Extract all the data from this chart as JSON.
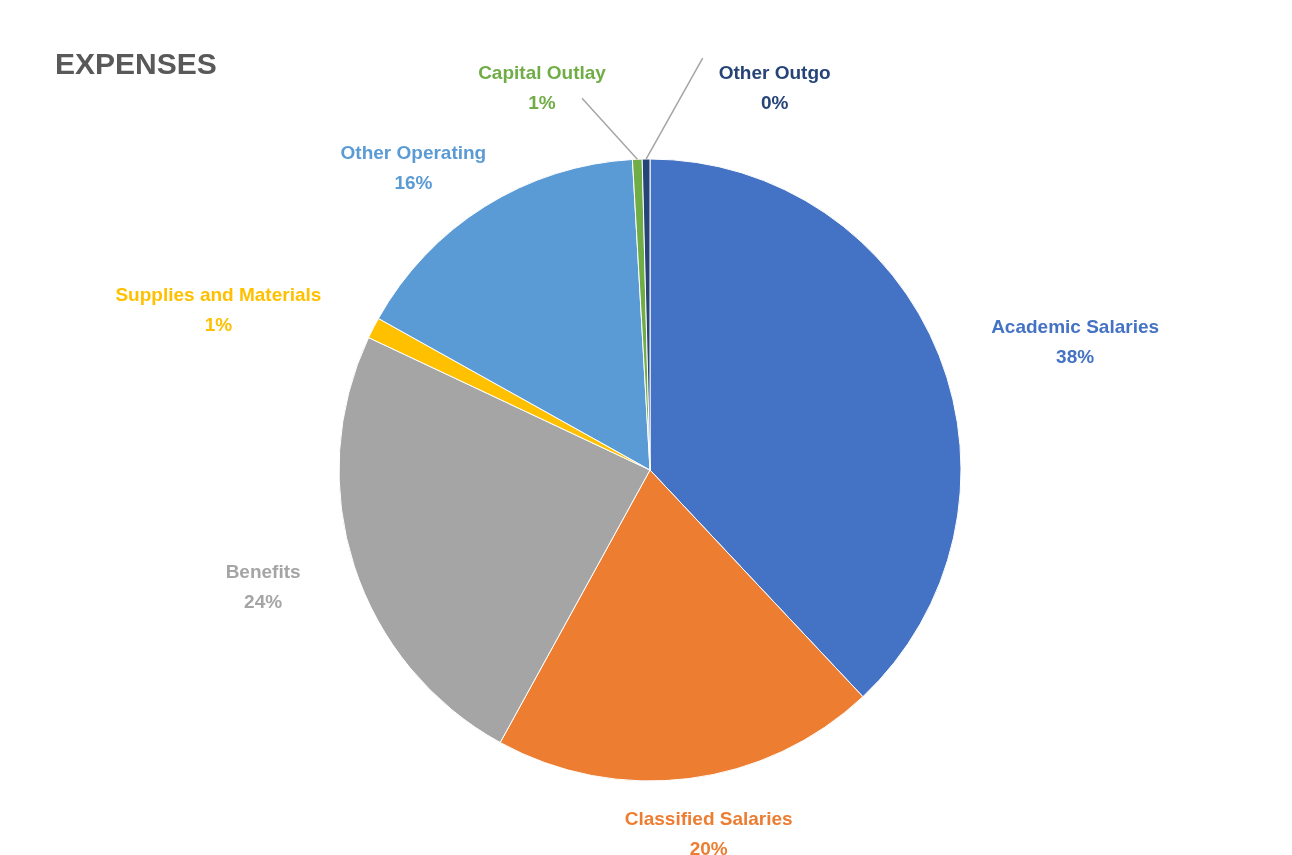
{
  "chart_data": {
    "type": "pie",
    "title": "EXPENSES",
    "categories": [
      "Academic Salaries",
      "Classified Salaries",
      "Benefits",
      "Supplies and Materials",
      "Other Operating",
      "Capital Outlay",
      "Other Outgo"
    ],
    "values": [
      38,
      20,
      24,
      1.1,
      16,
      0.5,
      0.4
    ],
    "value_labels": [
      "38%",
      "20%",
      "24%",
      "1%",
      "16%",
      "1%",
      "0%"
    ],
    "colors": [
      "#4472c4",
      "#ed7d31",
      "#a5a5a5",
      "#ffc000",
      "#5b9bd5",
      "#70ad47",
      "#264478"
    ]
  }
}
